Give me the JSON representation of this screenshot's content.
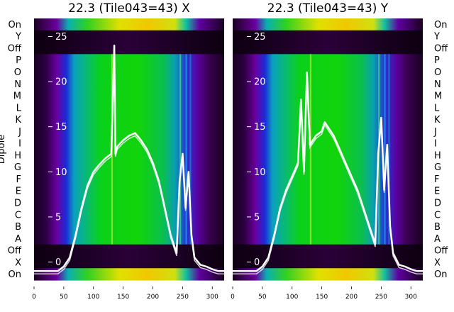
{
  "chart_data": [
    {
      "type": "heatmap",
      "title": "22.3 (Tile043=43) X",
      "ylabel": "Dipole",
      "row_labels": [
        "On",
        "Y",
        "Off",
        "P",
        "O",
        "N",
        "M",
        "L",
        "K",
        "J",
        "I",
        "H",
        "G",
        "F",
        "E",
        "D",
        "C",
        "B",
        "A",
        "Off",
        "X",
        "On"
      ],
      "x_ticks": [
        0,
        50,
        100,
        150,
        200,
        250,
        300
      ],
      "xlim": [
        0,
        320
      ],
      "overlay_ticks": [
        0,
        5,
        10,
        15,
        20,
        25
      ],
      "overlay_ylim": [
        -2,
        27
      ],
      "overlay_series": {
        "x": [
          0,
          10,
          20,
          30,
          40,
          50,
          60,
          70,
          80,
          90,
          100,
          110,
          120,
          130,
          135,
          137,
          140,
          150,
          160,
          170,
          180,
          190,
          200,
          210,
          220,
          230,
          240,
          245,
          250,
          255,
          260,
          265,
          270,
          280,
          290,
          300,
          310,
          320
        ],
        "y": [
          -1,
          -1,
          -1,
          -1,
          -1,
          -0.5,
          0.5,
          3,
          6,
          8.5,
          10,
          10.8,
          11.5,
          12,
          24,
          12,
          12.8,
          13.5,
          14,
          14.3,
          13.5,
          12.5,
          11,
          9,
          6,
          3,
          1,
          9,
          12,
          6,
          10,
          3,
          0.5,
          -0.3,
          -0.5,
          -0.8,
          -1,
          -1
        ]
      }
    },
    {
      "type": "heatmap",
      "title": "22.3 (Tile043=43) Y",
      "row_labels": [
        "On",
        "Y",
        "Off",
        "P",
        "O",
        "N",
        "M",
        "L",
        "K",
        "J",
        "I",
        "H",
        "G",
        "F",
        "E",
        "D",
        "C",
        "B",
        "A",
        "Off",
        "X",
        "On"
      ],
      "x_ticks": [
        0,
        50,
        100,
        150,
        200,
        250,
        300
      ],
      "xlim": [
        0,
        320
      ],
      "overlay_ticks": [
        0,
        5,
        10,
        15,
        20,
        25
      ],
      "overlay_ylim": [
        -2,
        27
      ],
      "overlay_series": {
        "x": [
          0,
          10,
          20,
          30,
          40,
          50,
          60,
          70,
          80,
          90,
          100,
          110,
          115,
          120,
          125,
          130,
          140,
          150,
          155,
          160,
          170,
          180,
          190,
          200,
          210,
          220,
          230,
          240,
          245,
          250,
          255,
          260,
          265,
          270,
          280,
          290,
          300,
          310,
          320
        ],
        "y": [
          -1,
          -1,
          -1,
          -1,
          -1,
          -0.5,
          0.5,
          3,
          6,
          8,
          9.5,
          11,
          18,
          10,
          21,
          13,
          14,
          14.5,
          15.5,
          15,
          14,
          12.5,
          11,
          9.5,
          8,
          6,
          4,
          2,
          12,
          16,
          8,
          13,
          4,
          1,
          -0.3,
          -0.5,
          -0.8,
          -1,
          -1
        ]
      }
    }
  ]
}
